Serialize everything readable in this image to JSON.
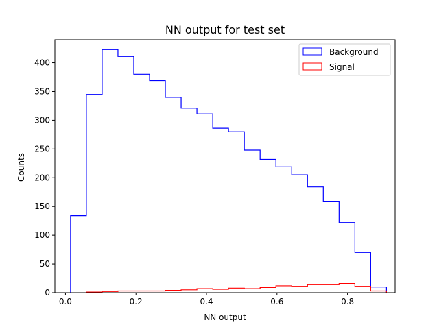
{
  "chart_data": {
    "type": "histogram",
    "title": "NN output for test set",
    "xlabel": "NN output",
    "ylabel": "Counts",
    "xlim": [
      -0.03,
      0.935
    ],
    "ylim": [
      0,
      440
    ],
    "xticks": [
      0.0,
      0.2,
      0.4,
      0.6,
      0.8
    ],
    "xtick_labels": [
      "0.0",
      "0.2",
      "0.4",
      "0.6",
      "0.8"
    ],
    "yticks": [
      0,
      50,
      100,
      150,
      200,
      250,
      300,
      350,
      400
    ],
    "ytick_labels": [
      "0",
      "50",
      "100",
      "150",
      "200",
      "250",
      "300",
      "350",
      "400"
    ],
    "grid": false,
    "legend_position": "top-right",
    "series": [
      {
        "name": "Background",
        "color": "#0000ff",
        "histtype": "step",
        "bin_edges": [
          0.0145,
          0.0593,
          0.1041,
          0.1489,
          0.1937,
          0.2385,
          0.2833,
          0.3281,
          0.3729,
          0.4177,
          0.4625,
          0.5073,
          0.5521,
          0.5969,
          0.6417,
          0.6865,
          0.7313,
          0.7761,
          0.8209,
          0.8657,
          0.9105
        ],
        "counts": [
          134,
          345,
          423,
          411,
          380,
          369,
          340,
          321,
          311,
          286,
          280,
          248,
          232,
          219,
          205,
          184,
          159,
          122,
          70,
          10
        ]
      },
      {
        "name": "Signal",
        "color": "#ff0000",
        "histtype": "step",
        "bin_edges": [
          0.0593,
          0.1041,
          0.1489,
          0.1937,
          0.2385,
          0.2833,
          0.3281,
          0.3729,
          0.4177,
          0.4625,
          0.5073,
          0.5521,
          0.5969,
          0.6417,
          0.6865,
          0.7313,
          0.7761,
          0.8209,
          0.8657,
          0.9105
        ],
        "counts": [
          1,
          2,
          3,
          3,
          3,
          4,
          5,
          7,
          6,
          8,
          7,
          9,
          12,
          11,
          14,
          14,
          16,
          11,
          3
        ]
      }
    ]
  }
}
